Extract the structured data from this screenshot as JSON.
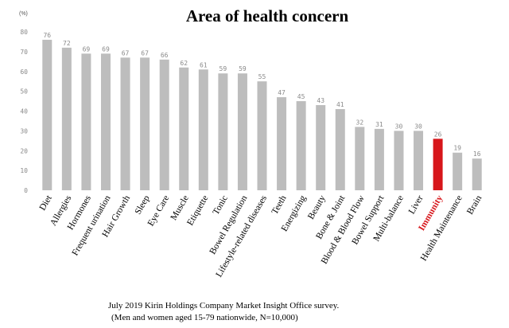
{
  "chart_data": {
    "type": "bar",
    "title": "Area of health concern",
    "unit_label": "(%)",
    "ylim": [
      0,
      80
    ],
    "yticks": [
      "0",
      "10",
      "20",
      "30",
      "40",
      "50",
      "60",
      "70",
      "80"
    ],
    "grid": false,
    "categories": [
      "Diet",
      "Allergies",
      "Hormones",
      "Frequent urination",
      "Hair Growth",
      "Sleep",
      "Eye Care",
      "Muscle",
      "Etiquette",
      "Tonic",
      "Bowel Regulation",
      "Lifestyle-related diseases",
      "Teeth",
      "Energizing",
      "Beauty",
      "Bone & Joint",
      "Blood & Blood Flow",
      "Bowel Support",
      "Multi-balance",
      "Liver",
      "Immunity",
      "Health Maintenance",
      "Brain"
    ],
    "values": [
      76,
      72,
      69,
      69,
      67,
      67,
      66,
      62,
      61,
      59,
      59,
      55,
      47,
      45,
      43,
      41,
      32,
      31,
      30,
      30,
      26,
      19,
      16
    ],
    "highlight_category": "Immunity",
    "colors": {
      "bar": "#bdbdbd",
      "highlight": "#d7161b",
      "value_label": "#8a8a8a",
      "axis_label": "#000000"
    }
  },
  "source_note": {
    "line1": "July 2019 Kirin Holdings Company Market Insight Office survey.",
    "line2": "(Men and women aged 15-79 nationwide, N=10,000)"
  }
}
